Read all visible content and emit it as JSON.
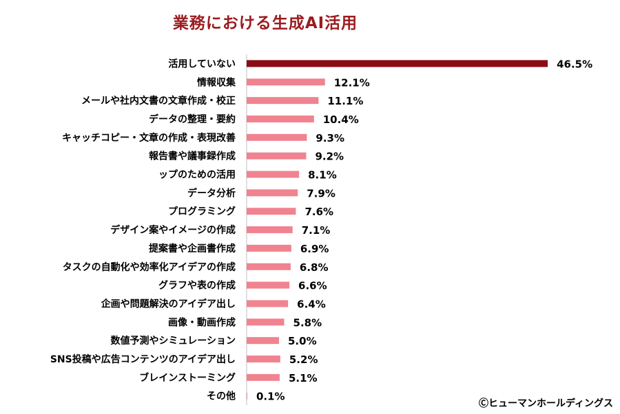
{
  "chart_data": {
    "type": "bar",
    "orientation": "horizontal",
    "title": "業務における生成AI活用",
    "categories": [
      "活用していない",
      "情報収集",
      "メールや社内文書の文章作成・校正",
      "データの整理・要約",
      "キャッチコピー・文章の作成・表現改善",
      "報告書や議事録作成",
      "ップのための活用",
      "データ分析",
      "プログラミング",
      "デザイン案やイメージの作成",
      "提案書や企画書作成",
      "タスクの自動化や効率化アイデアの作成",
      "グラフや表の作成",
      "企画や問題解決のアイデア出し",
      "画像・動画作成",
      "数値予測やシミュレーション",
      "SNS投稿や広告コンテンツのアイデア出し",
      "ブレインストーミング",
      "その他"
    ],
    "values": [
      46.5,
      12.1,
      11.1,
      10.4,
      9.3,
      9.2,
      8.1,
      7.9,
      7.6,
      7.1,
      6.9,
      6.8,
      6.6,
      6.4,
      5.8,
      5.0,
      5.2,
      5.1,
      0.1
    ],
    "value_labels": [
      "46.5%",
      "12.1%",
      "11.1%",
      "10.4%",
      "9.3%",
      "9.2%",
      "8.1%",
      "7.9%",
      "7.6%",
      "7.1%",
      "6.9%",
      "6.8%",
      "6.6%",
      "6.4%",
      "5.8%",
      "5.0%",
      "5.2%",
      "5.1%",
      "0.1%"
    ],
    "xlim": [
      0,
      50
    ],
    "grid": false,
    "colors": {
      "highlight": "#8b0b14",
      "bar": "#f0838f",
      "axis": "#bfbfbf"
    }
  },
  "footer": {
    "copyright": "Ⓒヒューマンホールディングス"
  }
}
